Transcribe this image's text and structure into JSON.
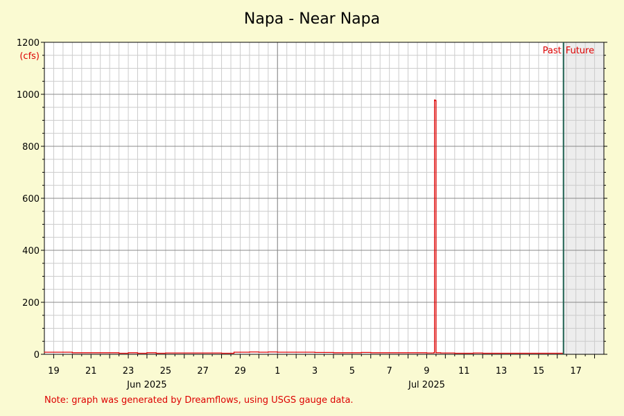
{
  "colors": {
    "background": "#fafad2",
    "plot_background": "#ffffff",
    "future_background": "#ededed",
    "grid_minor": "#cccccc",
    "grid_major": "#888888",
    "series": "#dd0000",
    "now_line": "#1d5f4f",
    "accent_text": "#dd0000"
  },
  "chart_data": {
    "type": "line",
    "title": "Napa - Near Napa",
    "ylabel": "(cfs)",
    "xlabel": "",
    "ylim": [
      0,
      1200
    ],
    "y_ticks": [
      0,
      200,
      400,
      600,
      800,
      1000,
      1200
    ],
    "x_range": [
      "2025-06-18T12:00",
      "2025-07-18T12:00"
    ],
    "x_tick_labels": [
      {
        "date": "2025-06-19",
        "label": "19"
      },
      {
        "date": "2025-06-21",
        "label": "21"
      },
      {
        "date": "2025-06-23",
        "label": "23"
      },
      {
        "date": "2025-06-25",
        "label": "25"
      },
      {
        "date": "2025-06-27",
        "label": "27"
      },
      {
        "date": "2025-06-29",
        "label": "29"
      },
      {
        "date": "2025-07-01",
        "label": "1"
      },
      {
        "date": "2025-07-03",
        "label": "3"
      },
      {
        "date": "2025-07-05",
        "label": "5"
      },
      {
        "date": "2025-07-07",
        "label": "7"
      },
      {
        "date": "2025-07-09",
        "label": "9"
      },
      {
        "date": "2025-07-11",
        "label": "11"
      },
      {
        "date": "2025-07-13",
        "label": "13"
      },
      {
        "date": "2025-07-15",
        "label": "15"
      },
      {
        "date": "2025-07-17",
        "label": "17"
      }
    ],
    "month_labels": [
      {
        "date": "2025-06-24",
        "label": "Jun 2025"
      },
      {
        "date": "2025-07-09",
        "label": "Jul 2025"
      }
    ],
    "month_boundaries": [
      "2025-07-01"
    ],
    "now": "2025-07-16T08:00",
    "past_label": "Past",
    "future_label": "Future",
    "grid": true,
    "series": [
      {
        "x": [
          "2025-06-18T12:00",
          "2025-06-19T12:00",
          "2025-06-20T00:00",
          "2025-06-21T12:00",
          "2025-06-22T00:00",
          "2025-06-22T12:00",
          "2025-06-23T00:00",
          "2025-06-23T12:00",
          "2025-06-24T00:00",
          "2025-06-24T12:00",
          "2025-06-25T00:00",
          "2025-06-26T00:00",
          "2025-06-27T00:00",
          "2025-06-28T00:00",
          "2025-06-28T12:00",
          "2025-06-28T16:00",
          "2025-06-29T00:00",
          "2025-06-29T12:00",
          "2025-06-30T00:00",
          "2025-06-30T12:00",
          "2025-07-01T00:00",
          "2025-07-02T00:00",
          "2025-07-03T00:00",
          "2025-07-03T12:00",
          "2025-07-04T00:00",
          "2025-07-05T00:00",
          "2025-07-05T12:00",
          "2025-07-06T00:00",
          "2025-07-07T00:00",
          "2025-07-08T00:00",
          "2025-07-09T00:00",
          "2025-07-09T06:00",
          "2025-07-09T09:00",
          "2025-07-09T10:00",
          "2025-07-09T11:00",
          "2025-07-09T12:00",
          "2025-07-09T18:00",
          "2025-07-10T00:00",
          "2025-07-10T12:00",
          "2025-07-11T00:00",
          "2025-07-11T12:00",
          "2025-07-12T00:00",
          "2025-07-12T12:00",
          "2025-07-13T00:00",
          "2025-07-14T00:00",
          "2025-07-15T00:00",
          "2025-07-16T08:00"
        ],
        "values": [
          8,
          8,
          6,
          6,
          6,
          4,
          6,
          4,
          6,
          4,
          5,
          5,
          5,
          4,
          4,
          8,
          8,
          9,
          8,
          9,
          8,
          8,
          7,
          7,
          6,
          6,
          7,
          6,
          6,
          6,
          5,
          5,
          6,
          978,
          976,
          6,
          5,
          5,
          4,
          4,
          5,
          4,
          4,
          4,
          4,
          4,
          4
        ]
      }
    ]
  },
  "note": "Note: graph was generated by Dreamflows, using USGS gauge data."
}
